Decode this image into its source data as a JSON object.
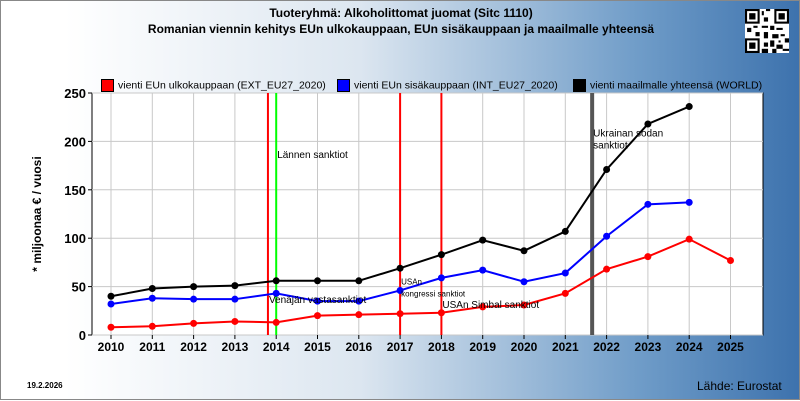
{
  "header": {
    "title": "Tuoteryhmä: Alkoholittomat juomat (Sitc 1110)",
    "subtitle": "Romanian viennin kehitys EUn ulkokauppaan, EUn sisäkauppaan ja maailmalle yhteensä"
  },
  "chart_data": {
    "type": "line",
    "title": "Tuoteryhmä: Alkoholittomat juomat (Sitc 1110)",
    "subtitle": "Romanian viennin kehitys EUn ulkokauppaan, EUn sisäkauppaan ja maailmalle yhteensä",
    "ylabel": "* miljoonaa € / vuosi",
    "xlabel": "",
    "ylim": [
      0,
      250
    ],
    "yticks": [
      0,
      50,
      100,
      150,
      200,
      250
    ],
    "x": [
      2010,
      2011,
      2012,
      2013,
      2014,
      2015,
      2016,
      2017,
      2018,
      2019,
      2020,
      2021,
      2022,
      2023,
      2024,
      2025
    ],
    "grid": true,
    "legend": "top",
    "series": [
      {
        "name": "vienti EUn ulkokauppaan (EXT_EU27_2020)",
        "color": "#ff0000",
        "values": [
          8,
          9,
          12,
          14,
          13,
          20,
          21,
          22,
          23,
          29,
          31,
          43,
          68,
          81,
          99,
          77
        ]
      },
      {
        "name": "vienti EUn sisäkauppaan (INT_EU27_2020)",
        "color": "#0000ff",
        "values": [
          32,
          38,
          37,
          37,
          43,
          35,
          35,
          46,
          59,
          67,
          55,
          64,
          102,
          135,
          137,
          null
        ]
      },
      {
        "name": "vienti maailmalle yhteensä (WORLD)",
        "color": "#000000",
        "values": [
          40,
          48,
          50,
          51,
          56,
          56,
          56,
          69,
          83,
          98,
          87,
          107,
          171,
          218,
          236,
          null
        ]
      }
    ],
    "annotations": [
      {
        "label": "Lännen sanktiot",
        "x": 2014.0,
        "color": "#00ff00",
        "label_y": 183
      },
      {
        "label": "Venäjän vastasanktiot",
        "x": 2013.8,
        "color": "#ff0000",
        "label_y": 33
      },
      {
        "label": "USAn kongressi sanktiot",
        "x": 2017.0,
        "color": "#ff0000",
        "label_y": 52
      },
      {
        "label": "USAn Simbal sanktiot",
        "x": 2018.0,
        "color": "#ff0000",
        "label_y": 28
      },
      {
        "label": "Ukrainan sodan sanktiot",
        "x": 2021.65,
        "color": "#555555",
        "label_y": 205
      }
    ]
  },
  "footer": {
    "date": "19.2.2026",
    "source": "Lähde: Eurostat"
  },
  "icons": {
    "qr": "qr-code-icon"
  }
}
